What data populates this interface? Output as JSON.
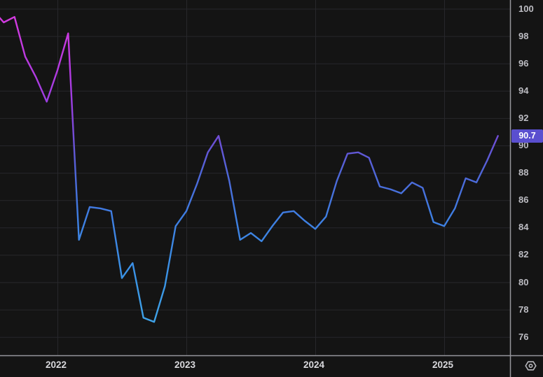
{
  "window": {
    "kind": "financial line chart",
    "title": ""
  },
  "colors": {
    "background": "#141414",
    "grid": "#27272b",
    "axis_line": "#96969c",
    "axis_text": "#bdbdc3",
    "year_text": "#d8d8dc",
    "price_label_bg": "#5a4fcf",
    "price_label_text": "#ffffff",
    "line_gradient_by_value": [
      {
        "value": 100,
        "color": "#d83bdf"
      },
      {
        "value": 95.5,
        "color": "#b43ae1"
      },
      {
        "value": 93,
        "color": "#9a3fe2"
      },
      {
        "value": 90.5,
        "color": "#6f4ed6"
      },
      {
        "value": 88,
        "color": "#4f66d8"
      },
      {
        "value": 85,
        "color": "#3f7de2"
      },
      {
        "value": 80,
        "color": "#3a95e6"
      },
      {
        "value": 76,
        "color": "#41a9ea"
      }
    ]
  },
  "y_axis": {
    "ticks": [
      100,
      98,
      96,
      94,
      92,
      90,
      88,
      86,
      84,
      82,
      80,
      78,
      76
    ],
    "last_price": "90.7"
  },
  "x_axis": {
    "ticks": [
      "2022",
      "2023",
      "2024",
      "2025"
    ]
  },
  "chart_data": {
    "type": "line",
    "title": "",
    "xlabel": "",
    "ylabel": "",
    "ylim": [
      74.6,
      100.6
    ],
    "grid": true,
    "legend": false,
    "x": [
      "2021-07",
      "2021-08",
      "2021-09",
      "2021-10",
      "2021-11",
      "2021-12",
      "2022-01",
      "2022-02",
      "2022-03",
      "2022-04",
      "2022-05",
      "2022-06",
      "2022-07",
      "2022-08",
      "2022-09",
      "2022-10",
      "2022-11",
      "2022-12",
      "2023-01",
      "2023-02",
      "2023-03",
      "2023-04",
      "2023-05",
      "2023-06",
      "2023-07",
      "2023-08",
      "2023-09",
      "2023-10",
      "2023-11",
      "2023-12",
      "2024-01",
      "2024-02",
      "2024-03",
      "2024-04",
      "2024-05",
      "2024-06",
      "2024-07",
      "2024-08",
      "2024-09",
      "2024-10",
      "2024-11",
      "2024-12",
      "2025-01",
      "2025-02",
      "2025-03",
      "2025-04",
      "2025-05",
      "2025-06"
    ],
    "values": [
      99.9,
      99.0,
      99.4,
      96.5,
      95.0,
      93.2,
      95.5,
      98.2,
      83.1,
      85.5,
      85.4,
      85.2,
      80.3,
      81.4,
      77.4,
      77.1,
      79.7,
      84.1,
      85.2,
      87.2,
      89.5,
      90.7,
      87.4,
      83.1,
      83.6,
      83.0,
      84.1,
      85.1,
      85.2,
      84.5,
      83.9,
      84.8,
      87.4,
      89.4,
      89.5,
      89.1,
      87.0,
      86.8,
      86.5,
      87.3,
      86.9,
      84.4,
      84.1,
      85.4,
      87.6,
      87.3,
      88.9,
      90.7
    ],
    "last_value": 90.7
  }
}
